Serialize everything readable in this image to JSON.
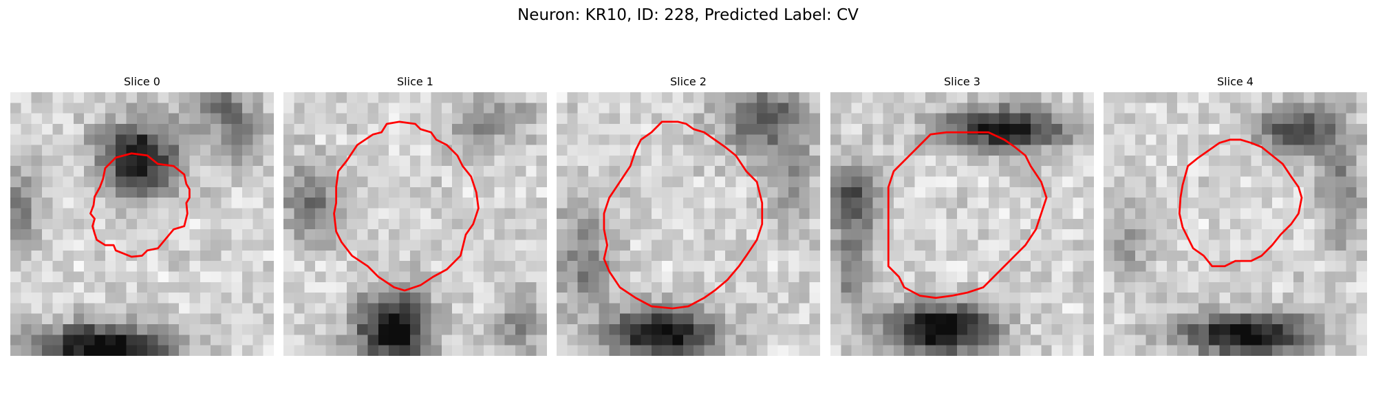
{
  "figure": {
    "title": "Neuron: KR10, ID: 228, Predicted Label: CV",
    "outline_color": "#ff0000"
  },
  "panels": [
    {
      "title": "Slice 0"
    },
    {
      "title": "Slice 1"
    },
    {
      "title": "Slice 2"
    },
    {
      "title": "Slice 3"
    },
    {
      "title": "Slice 4"
    }
  ]
}
